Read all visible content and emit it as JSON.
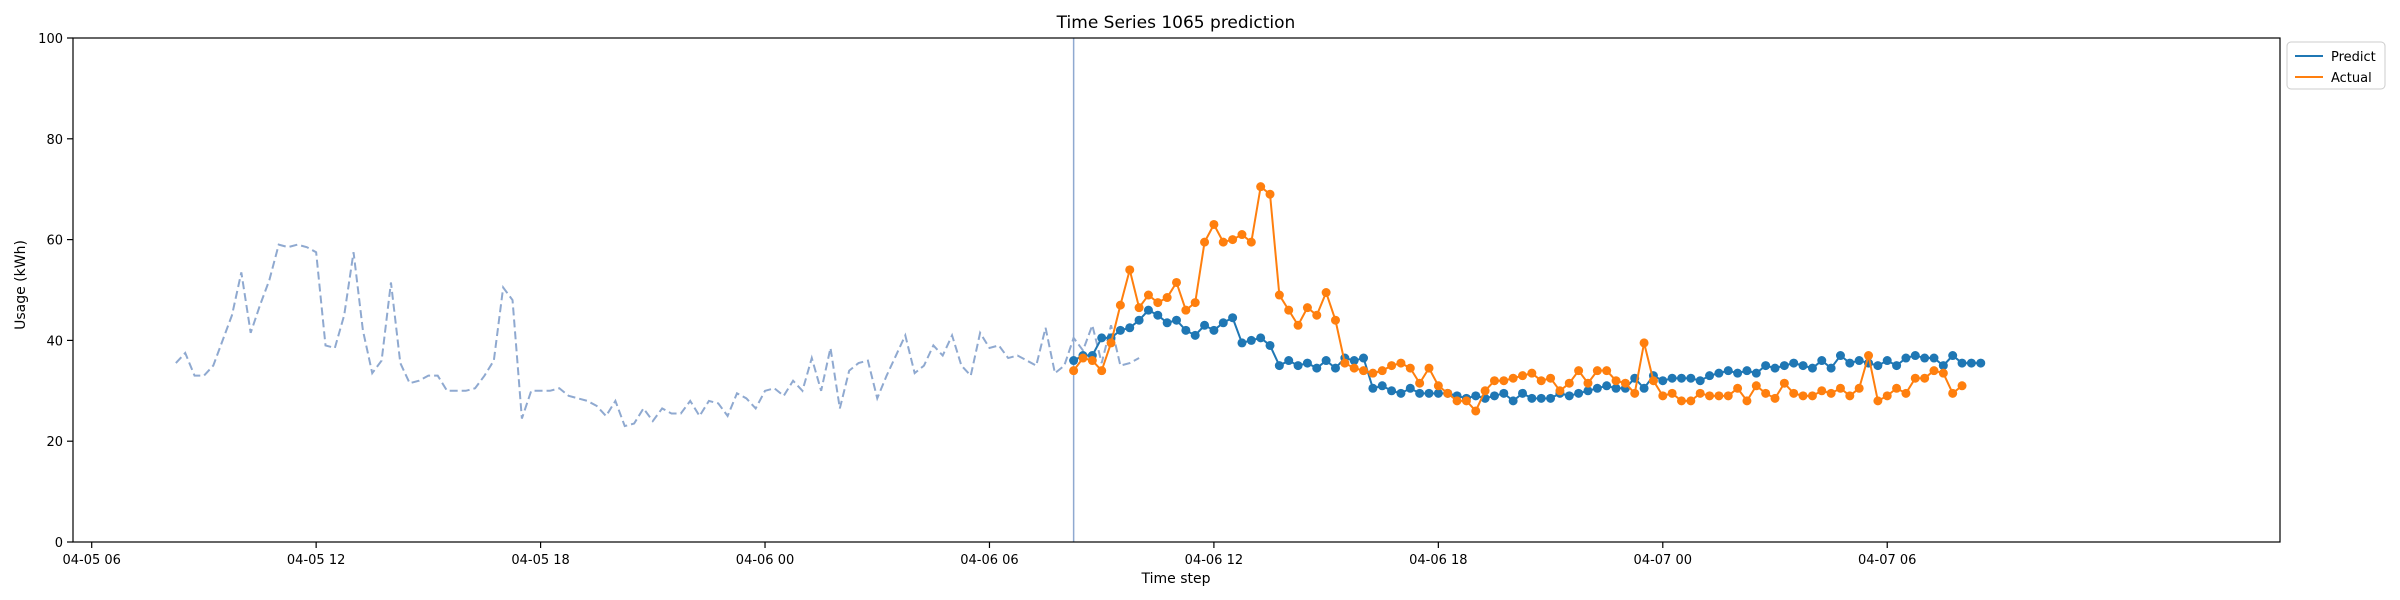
{
  "chart_data": {
    "type": "line",
    "title": "Time Series 1065 prediction",
    "xlabel": "Time step",
    "ylabel": "Usage (kWh)",
    "ylim": [
      0,
      100
    ],
    "xlim": [
      "2020-04-05 05:30",
      "2020-04-07 16:30"
    ],
    "yticks": [
      0,
      20,
      40,
      60,
      80,
      100
    ],
    "xticks": [
      {
        "time": "2020-04-05 06:00",
        "label": "04-05 06"
      },
      {
        "time": "2020-04-05 12:00",
        "label": "04-05 12"
      },
      {
        "time": "2020-04-05 18:00",
        "label": "04-05 18"
      },
      {
        "time": "2020-04-06 00:00",
        "label": "04-06 00"
      },
      {
        "time": "2020-04-06 06:00",
        "label": "04-06 06"
      },
      {
        "time": "2020-04-06 12:00",
        "label": "04-06 12"
      },
      {
        "time": "2020-04-06 18:00",
        "label": "04-06 18"
      },
      {
        "time": "2020-04-07 00:00",
        "label": "04-07 00"
      },
      {
        "time": "2020-04-07 06:00",
        "label": "04-07 06"
      }
    ],
    "grid": false,
    "legend_position": "outside-upper-right",
    "interval_minutes": 15,
    "history": {
      "start": "2020-04-05 08:15",
      "color": "#8fa9d0",
      "style": "dashed",
      "values": [
        35.5,
        37.5,
        33,
        33,
        35,
        40,
        45,
        53.5,
        41.5,
        47,
        52,
        59,
        58.5,
        59,
        58.5,
        57.5,
        39,
        38.5,
        45,
        57.5,
        42,
        33.5,
        36,
        51.5,
        35.5,
        31.5,
        32,
        33,
        33,
        30,
        30,
        30,
        30.5,
        33,
        36,
        50.5,
        48,
        24.5,
        30,
        30,
        30,
        30.5,
        29,
        28.5,
        28,
        27,
        25,
        28,
        23,
        23.5,
        26.5,
        24,
        26.5,
        25.5,
        25.5,
        28,
        25,
        28,
        27.5,
        25,
        29.5,
        28.5,
        26.5,
        30,
        30.5,
        29,
        32,
        30,
        36.5,
        30,
        38.5,
        26.5,
        34,
        35.5,
        36,
        28.5,
        33,
        37,
        41,
        33.5,
        35,
        39,
        37,
        41,
        35,
        33,
        41.5,
        38.5,
        39,
        36.5,
        37,
        36,
        35,
        42.5,
        33.5,
        35,
        40.5,
        38,
        43,
        35.5,
        43,
        35,
        35.5,
        36.5
      ]
    },
    "forecast_start": "2020-04-06 08:15",
    "series": [
      {
        "name": "Predict",
        "color": "#1f77b4",
        "start": "2020-04-06 08:15",
        "values": [
          36,
          37,
          37,
          40.5,
          40.5,
          42,
          42.5,
          44,
          46,
          45,
          43.5,
          44,
          42,
          41,
          43,
          42,
          43.5,
          44.5,
          39.5,
          40,
          40.5,
          39,
          35,
          36,
          35,
          35.5,
          34.5,
          36,
          34.5,
          36.5,
          36,
          36.5,
          30.5,
          31,
          30,
          29.5,
          30.5,
          29.5,
          29.5,
          29.5,
          29.5,
          29,
          28.5,
          29,
          28.5,
          29,
          29.5,
          28,
          29.5,
          28.5,
          28.5,
          28.5,
          29.5,
          29,
          29.5,
          30,
          30.5,
          31,
          30.5,
          30.5,
          32.5,
          30.5,
          33,
          32,
          32.5,
          32.5,
          32.5,
          32,
          33,
          33.5,
          34,
          33.5,
          34,
          33.5,
          35,
          34.5,
          35,
          35.5,
          35,
          34.5,
          36,
          34.5,
          37,
          35.5,
          36,
          35.5,
          35,
          36,
          35,
          36.5,
          37,
          36.5,
          36.5,
          35,
          37,
          35.5,
          35.5,
          35.5
        ]
      },
      {
        "name": "Actual",
        "color": "#ff7f0e",
        "start": "2020-04-06 08:15",
        "values": [
          34,
          36.5,
          36,
          34,
          39.5,
          47,
          54,
          46.5,
          49,
          47.5,
          48.5,
          51.5,
          46,
          47.5,
          59.5,
          63,
          59.5,
          60,
          61,
          59.5,
          70.5,
          69,
          49,
          46,
          43,
          46.5,
          45,
          49.5,
          44,
          35.5,
          34.5,
          34,
          33.5,
          34,
          35,
          35.5,
          34.5,
          31.5,
          34.5,
          31,
          29.5,
          28,
          28,
          26,
          30,
          32,
          32,
          32.5,
          33,
          33.5,
          32,
          32.5,
          30,
          31.5,
          34,
          31.5,
          34,
          34,
          32,
          31.5,
          29.5,
          39.5,
          32,
          29,
          29.5,
          28,
          28,
          29.5,
          29,
          29,
          29,
          30.5,
          28,
          31,
          29.5,
          28.5,
          31.5,
          29.5,
          29,
          29,
          30,
          29.5,
          30.5,
          29,
          30.5,
          37,
          28,
          29,
          30.5,
          29.5,
          32.5,
          32.5,
          34,
          33.5,
          29.5,
          31
        ]
      }
    ]
  }
}
